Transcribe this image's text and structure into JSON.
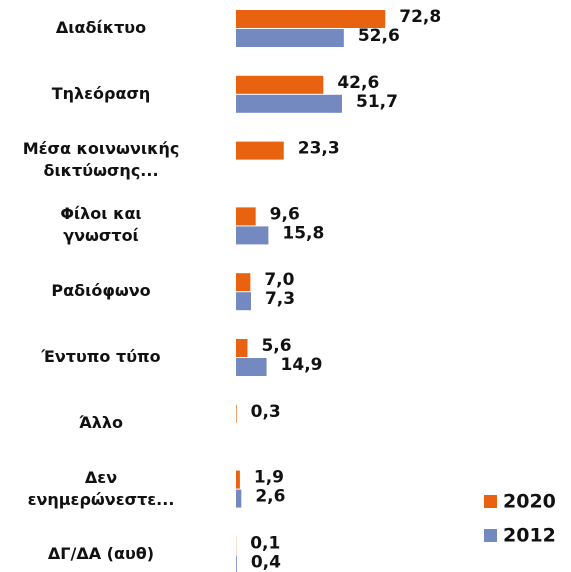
{
  "chart_data": {
    "type": "bar",
    "orientation": "horizontal",
    "categories": [
      "Διαδίκτυο",
      "Τηλεόραση",
      "Μέσα κοινωνικής\nδικτύωσης...",
      "Φίλοι και\nγνωστοί",
      "Ραδιόφωνο",
      "Έντυπο τύπο",
      "Άλλο",
      "Δεν\nενημερώνεστε...",
      "ΔΓ/ΔΑ (αυθ)"
    ],
    "series": [
      {
        "name": "2020",
        "color": "#e8620f",
        "values": [
          72.8,
          42.6,
          23.3,
          9.6,
          7.0,
          5.6,
          0.3,
          1.9,
          0.1
        ],
        "value_labels": [
          "72,8",
          "42,6",
          "23,3",
          "9,6",
          "7,0",
          "5,6",
          "0,3",
          "1,9",
          "0,1"
        ]
      },
      {
        "name": "2012",
        "color": "#7389c0",
        "values": [
          52.6,
          51.7,
          null,
          15.8,
          7.3,
          14.9,
          null,
          2.6,
          0.4
        ],
        "value_labels": [
          "52,6",
          "51,7",
          null,
          "15,8",
          "7,3",
          "14,9",
          null,
          "2,6",
          "0,4"
        ]
      }
    ],
    "legend": "bottom-right"
  }
}
